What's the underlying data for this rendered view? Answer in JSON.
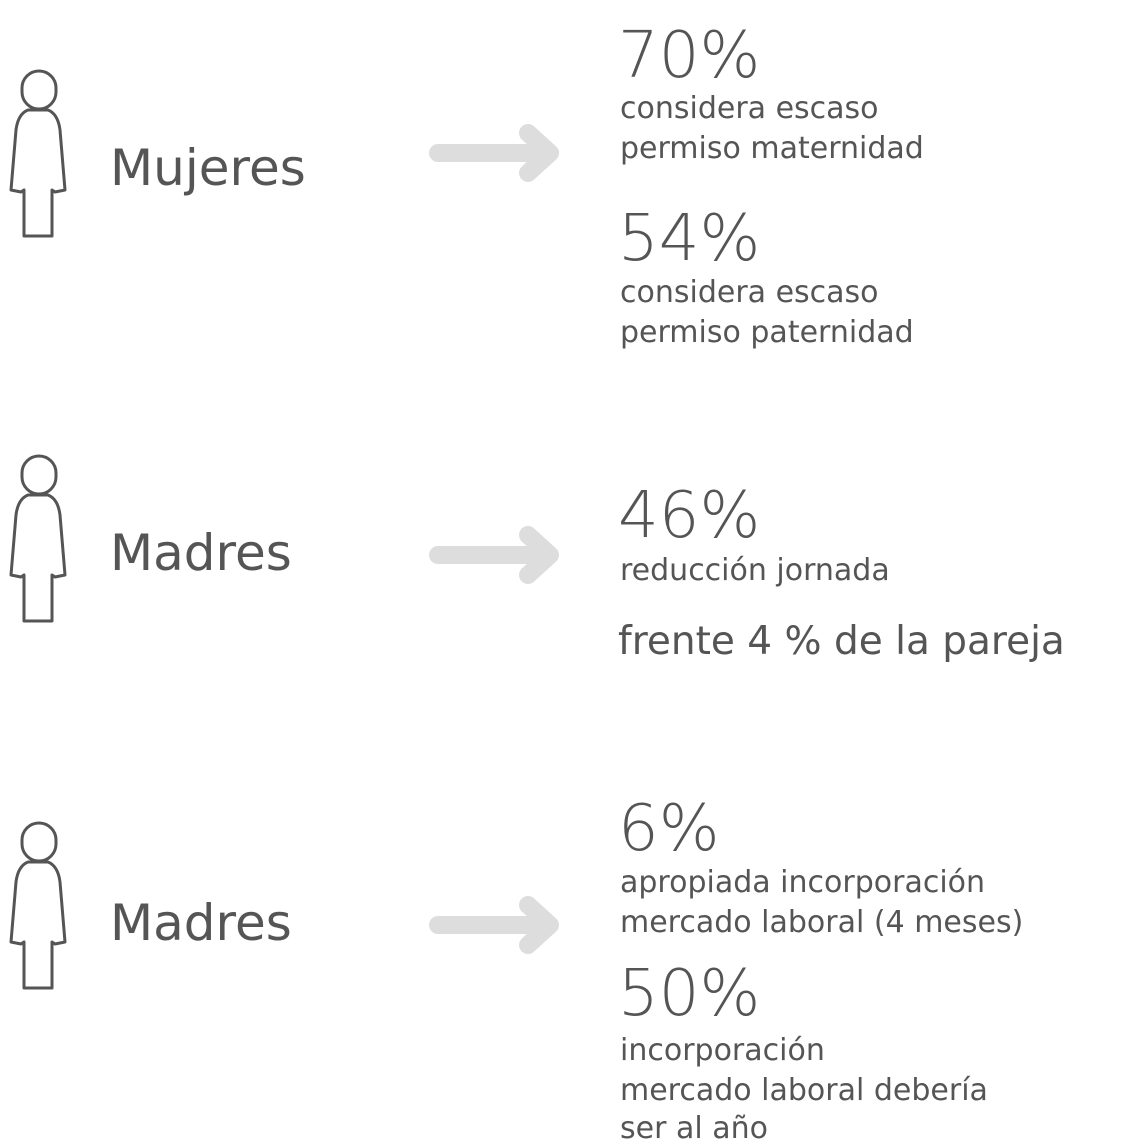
{
  "rows": [
    {
      "label": "Mujeres",
      "stats": [
        {
          "value": "70%",
          "lines": [
            "considera escaso",
            "permiso maternidad"
          ]
        },
        {
          "value": "54%",
          "lines": [
            "considera escaso",
            "permiso paternidad"
          ]
        }
      ]
    },
    {
      "label": "Madres",
      "stats": [
        {
          "value": "46%",
          "lines": [
            "reducción jornada"
          ]
        }
      ],
      "note": "frente 4 % de la pareja"
    },
    {
      "label": "Madres",
      "stats": [
        {
          "value": "6%",
          "lines": [
            "apropiada incorporación",
            "mercado laboral (4 meses)"
          ]
        },
        {
          "value": "50%",
          "lines": [
            "incorporación",
            "mercado laboral debería",
            "ser al año"
          ]
        }
      ]
    }
  ]
}
